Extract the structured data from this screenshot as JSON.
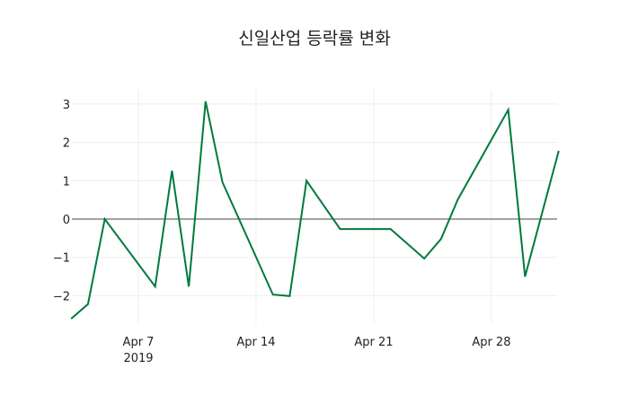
{
  "chart_data": {
    "type": "line",
    "title": "신일산업 등락률 변화",
    "xlabel": "",
    "ylabel": "",
    "x": [
      "2019-04-03",
      "2019-04-04",
      "2019-04-05",
      "2019-04-08",
      "2019-04-09",
      "2019-04-10",
      "2019-04-11",
      "2019-04-12",
      "2019-04-15",
      "2019-04-16",
      "2019-04-17",
      "2019-04-19",
      "2019-04-22",
      "2019-04-24",
      "2019-04-25",
      "2019-04-26",
      "2019-04-29",
      "2019-04-30",
      "2019-05-02"
    ],
    "series": [
      {
        "name": "등락률",
        "color": "#007a3d",
        "values": [
          -2.6,
          -2.22,
          0,
          -1.76,
          1.26,
          -1.76,
          3.07,
          0.96,
          -1.97,
          -2.01,
          1.0,
          -0.26,
          -0.26,
          -1.03,
          -0.52,
          0.51,
          2.85,
          -1.5,
          1.78
        ]
      }
    ],
    "ylim": [
      -2.6,
      3.4
    ],
    "yticks": [
      -2,
      -1,
      0,
      1,
      2,
      3
    ],
    "ytick_labels": [
      "−2",
      "−1",
      "0",
      "1",
      "2",
      "3"
    ],
    "xticks": [
      {
        "date": "2019-04-07",
        "label": "Apr 7",
        "sub": "2019"
      },
      {
        "date": "2019-04-14",
        "label": "Apr 14",
        "sub": ""
      },
      {
        "date": "2019-04-21",
        "label": "Apr 21",
        "sub": ""
      },
      {
        "date": "2019-04-28",
        "label": "Apr 28",
        "sub": ""
      }
    ],
    "grid": true,
    "legend": "none"
  }
}
